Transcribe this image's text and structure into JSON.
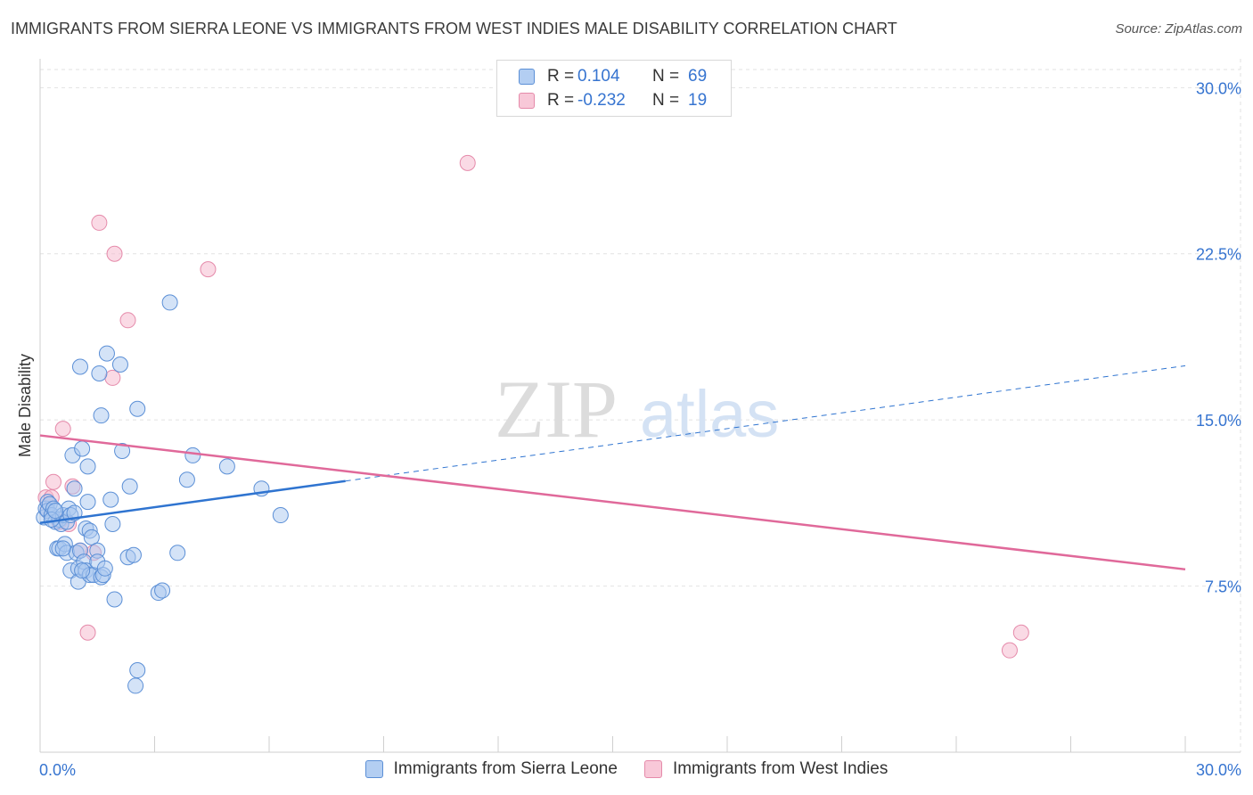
{
  "title": "IMMIGRANTS FROM SIERRA LEONE VS IMMIGRANTS FROM WEST INDIES MALE DISABILITY CORRELATION CHART",
  "source": "Source: ZipAtlas.com",
  "watermark": {
    "zip": "ZIP",
    "atlas": "atlas"
  },
  "legend": {
    "rows": [
      {
        "r_label": "R =",
        "r_value": "0.104",
        "n_label": "N =",
        "n_value": "69"
      },
      {
        "r_label": "R =",
        "r_value": "-0.232",
        "n_label": "N =",
        "n_value": "19"
      }
    ]
  },
  "bottom_legend": {
    "series1": "Immigrants from Sierra Leone",
    "series2": "Immigrants from West Indies"
  },
  "colors": {
    "blue_fill": "#a9c8f0",
    "blue_stroke": "#5b8fd6",
    "blue_line": "#2f74d0",
    "pink_fill": "#f5bcd0",
    "pink_stroke": "#e58aaa",
    "pink_line": "#e0699a",
    "tick_label": "#3674d0",
    "grid": "#e2e2e2"
  },
  "chart_data": {
    "type": "scatter",
    "ylabel": "Male Disability",
    "xlabel": "",
    "xlim": [
      0,
      30
    ],
    "ylim": [
      0,
      31.3
    ],
    "x_tick_labels": [
      {
        "v": 0,
        "t": "0.0%"
      },
      {
        "v": 30,
        "t": "30.0%"
      }
    ],
    "y_ticks": [
      {
        "v": 7.5,
        "t": "7.5%"
      },
      {
        "v": 15,
        "t": "15.0%"
      },
      {
        "v": 22.5,
        "t": "22.5%"
      },
      {
        "v": 30,
        "t": "30.0%"
      }
    ],
    "series": [
      {
        "name": "Immigrants from Sierra Leone",
        "points": [
          [
            0.1,
            10.6
          ],
          [
            0.15,
            11.0
          ],
          [
            0.2,
            11.3
          ],
          [
            0.2,
            10.9
          ],
          [
            0.25,
            11.2
          ],
          [
            0.3,
            10.7
          ],
          [
            0.35,
            11.0
          ],
          [
            0.4,
            10.4
          ],
          [
            0.45,
            9.2
          ],
          [
            0.5,
            10.5
          ],
          [
            0.5,
            9.2
          ],
          [
            0.55,
            10.3
          ],
          [
            0.6,
            10.7
          ],
          [
            0.65,
            9.4
          ],
          [
            0.7,
            10.4
          ],
          [
            0.7,
            9.0
          ],
          [
            0.75,
            11.0
          ],
          [
            0.8,
            10.7
          ],
          [
            0.8,
            8.2
          ],
          [
            0.85,
            13.4
          ],
          [
            0.9,
            10.8
          ],
          [
            0.9,
            11.9
          ],
          [
            0.95,
            9.0
          ],
          [
            1.0,
            8.3
          ],
          [
            1.0,
            7.7
          ],
          [
            1.05,
            9.1
          ],
          [
            1.05,
            17.4
          ],
          [
            1.1,
            13.7
          ],
          [
            1.15,
            8.6
          ],
          [
            1.2,
            10.1
          ],
          [
            1.2,
            8.2
          ],
          [
            1.25,
            12.9
          ],
          [
            1.25,
            11.3
          ],
          [
            1.3,
            10.0
          ],
          [
            1.3,
            8.0
          ],
          [
            1.35,
            9.7
          ],
          [
            1.4,
            8.0
          ],
          [
            1.5,
            9.1
          ],
          [
            1.5,
            8.6
          ],
          [
            1.55,
            17.1
          ],
          [
            1.6,
            15.2
          ],
          [
            1.6,
            7.9
          ],
          [
            1.65,
            8.0
          ],
          [
            1.7,
            8.3
          ],
          [
            1.75,
            18.0
          ],
          [
            1.85,
            11.4
          ],
          [
            1.9,
            10.3
          ],
          [
            1.95,
            6.9
          ],
          [
            2.1,
            17.5
          ],
          [
            2.15,
            13.6
          ],
          [
            2.3,
            8.8
          ],
          [
            2.35,
            12.0
          ],
          [
            2.45,
            8.9
          ],
          [
            2.5,
            3.0
          ],
          [
            2.55,
            3.7
          ],
          [
            2.55,
            15.5
          ],
          [
            3.1,
            7.2
          ],
          [
            3.2,
            7.3
          ],
          [
            3.4,
            20.3
          ],
          [
            3.6,
            9.0
          ],
          [
            4.0,
            13.4
          ],
          [
            3.85,
            12.3
          ],
          [
            4.9,
            12.9
          ],
          [
            5.8,
            11.9
          ],
          [
            6.3,
            10.7
          ],
          [
            0.3,
            10.5
          ],
          [
            0.6,
            9.2
          ],
          [
            1.1,
            8.2
          ],
          [
            0.4,
            10.9
          ]
        ]
      },
      {
        "name": "Immigrants from West Indies",
        "points": [
          [
            0.15,
            11.5
          ],
          [
            0.2,
            10.9
          ],
          [
            0.3,
            11.5
          ],
          [
            0.35,
            12.2
          ],
          [
            0.5,
            10.4
          ],
          [
            0.6,
            14.6
          ],
          [
            0.75,
            10.3
          ],
          [
            0.85,
            12.0
          ],
          [
            1.05,
            9.1
          ],
          [
            1.25,
            5.4
          ],
          [
            1.4,
            9.0
          ],
          [
            1.55,
            23.9
          ],
          [
            1.9,
            16.9
          ],
          [
            1.95,
            22.5
          ],
          [
            2.3,
            19.5
          ],
          [
            4.4,
            21.8
          ],
          [
            11.2,
            26.6
          ],
          [
            25.4,
            4.6
          ],
          [
            25.7,
            5.4
          ]
        ]
      }
    ],
    "trend_lines": [
      {
        "series": "Immigrants from Sierra Leone",
        "solid_x": [
          0,
          8.0
        ],
        "dashed_x": [
          8.0,
          30.0
        ],
        "y_at_0": 10.35,
        "slope": 0.2365
      },
      {
        "series": "Immigrants from West Indies",
        "solid_x": [
          0,
          30.0
        ],
        "y_at_0": 14.3,
        "slope": -0.2015
      }
    ]
  }
}
